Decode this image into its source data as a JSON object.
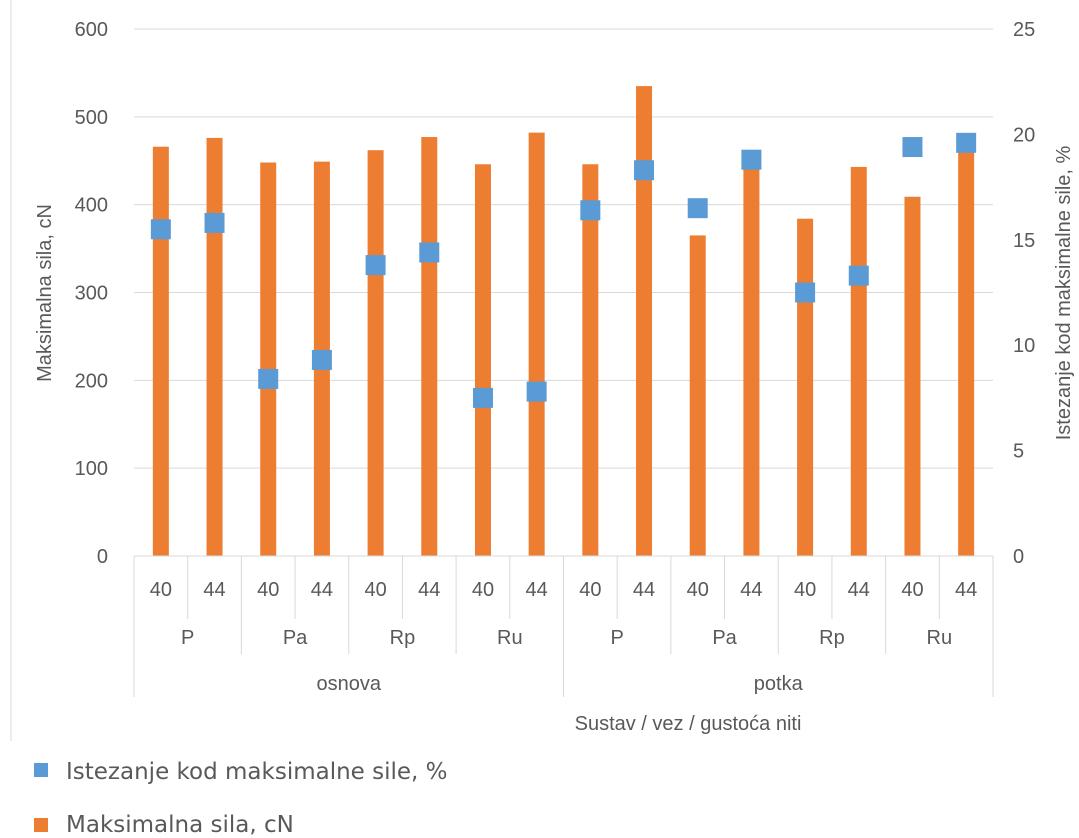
{
  "chart_data": {
    "type": "bar",
    "title": "",
    "xlabel": "Sustav / vez / gustoća niti",
    "ylabel": "Maksimalna sila, cN",
    "y2label": "Istezanje kod maksimalne sile, %",
    "ylim": [
      0,
      600
    ],
    "y2lim": [
      0,
      25
    ],
    "yticks": [
      "0",
      "100",
      "200",
      "300",
      "400",
      "500",
      "600"
    ],
    "y2ticks": [
      "0",
      "5",
      "10",
      "15",
      "20",
      "25"
    ],
    "grid": true,
    "legend_position": "bottom",
    "categories": [
      {
        "group": "osnova",
        "vez": "P",
        "gustoca": "40"
      },
      {
        "group": "osnova",
        "vez": "P",
        "gustoca": "44"
      },
      {
        "group": "osnova",
        "vez": "Pa",
        "gustoca": "40"
      },
      {
        "group": "osnova",
        "vez": "Pa",
        "gustoca": "44"
      },
      {
        "group": "osnova",
        "vez": "Rp",
        "gustoca": "40"
      },
      {
        "group": "osnova",
        "vez": "Rp",
        "gustoca": "44"
      },
      {
        "group": "osnova",
        "vez": "Ru",
        "gustoca": "40"
      },
      {
        "group": "osnova",
        "vez": "Ru",
        "gustoca": "44"
      },
      {
        "group": "potka",
        "vez": "P",
        "gustoca": "40"
      },
      {
        "group": "potka",
        "vez": "P",
        "gustoca": "44"
      },
      {
        "group": "potka",
        "vez": "Pa",
        "gustoca": "40"
      },
      {
        "group": "potka",
        "vez": "Pa",
        "gustoca": "44"
      },
      {
        "group": "potka",
        "vez": "Rp",
        "gustoca": "40"
      },
      {
        "group": "potka",
        "vez": "Rp",
        "gustoca": "44"
      },
      {
        "group": "potka",
        "vez": "Ru",
        "gustoca": "40"
      },
      {
        "group": "potka",
        "vez": "Ru",
        "gustoca": "44"
      }
    ],
    "series": [
      {
        "name": "Maksimalna sila, cN",
        "type": "bar",
        "axis": "left",
        "color": "#ED7D31",
        "values": [
          466,
          476,
          448,
          449,
          462,
          477,
          446,
          482,
          446,
          535,
          365,
          450,
          384,
          443,
          409,
          475
        ]
      },
      {
        "name": "Istezanje kod maksimalne sile, %",
        "type": "marker",
        "axis": "right",
        "color": "#5B9BD5",
        "values": [
          15.5,
          15.8,
          8.4,
          9.3,
          13.8,
          14.4,
          7.5,
          7.8,
          16.4,
          18.3,
          16.5,
          18.8,
          12.5,
          13.3,
          19.4,
          19.6
        ]
      }
    ]
  }
}
